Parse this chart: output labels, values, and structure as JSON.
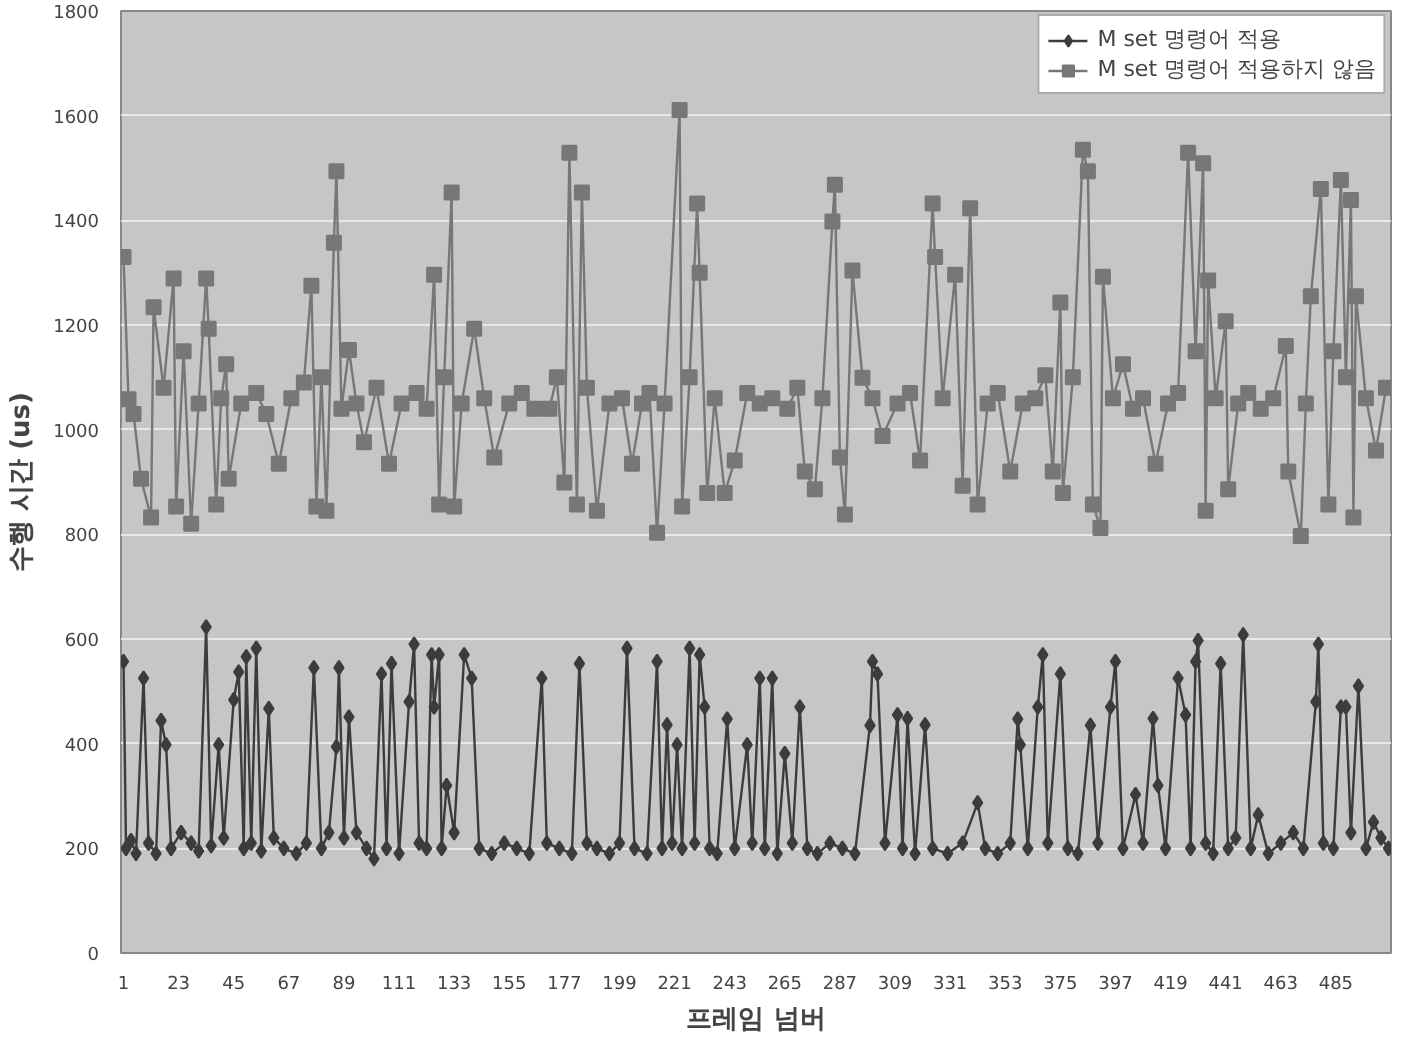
{
  "chart_data": {
    "type": "line",
    "xlabel": "프레임 넘버",
    "ylabel": "수행 시간 (us)",
    "xlim": [
      0,
      507
    ],
    "ylim": [
      0,
      1800
    ],
    "xticks": [
      1,
      23,
      45,
      67,
      89,
      111,
      133,
      155,
      177,
      199,
      221,
      243,
      265,
      287,
      309,
      331,
      353,
      375,
      397,
      419,
      441,
      463,
      485
    ],
    "yticks": [
      0,
      200,
      400,
      600,
      800,
      1000,
      1200,
      1400,
      1600,
      1800
    ],
    "grid": "y",
    "legend": "top right",
    "line_style": "solid",
    "series": [
      {
        "name": "M set 명령어 적용",
        "color": "#3c3c3c",
        "marker": "diamond",
        "x": [
          1,
          2,
          4,
          6,
          9,
          11,
          14,
          16,
          18,
          20,
          24,
          28,
          31,
          34,
          36,
          39,
          41,
          45,
          47,
          49,
          50,
          52,
          54,
          56,
          59,
          61,
          65,
          70,
          74,
          77,
          80,
          83,
          86,
          87,
          89,
          91,
          94,
          98,
          101,
          104,
          106,
          108,
          111,
          115,
          117,
          119,
          122,
          124,
          125,
          127,
          128,
          130,
          133,
          137,
          140,
          143,
          148,
          153,
          158,
          163,
          168,
          170,
          175,
          180,
          183,
          186,
          190,
          195,
          199,
          202,
          205,
          210,
          214,
          216,
          218,
          220,
          222,
          224,
          227,
          229,
          231,
          233,
          235,
          238,
          242,
          245,
          250,
          252,
          255,
          257,
          260,
          262,
          265,
          268,
          271,
          274,
          278,
          283,
          288,
          293,
          299,
          300,
          302,
          305,
          310,
          312,
          314,
          317,
          321,
          324,
          330,
          336,
          342,
          345,
          350,
          355,
          358,
          359,
          362,
          366,
          368,
          370,
          375,
          378,
          382,
          387,
          390,
          395,
          397,
          400,
          405,
          408,
          412,
          414,
          417,
          422,
          425,
          427,
          429,
          430,
          433,
          436,
          439,
          442,
          445,
          448,
          451,
          454,
          458,
          463,
          468,
          472,
          477,
          478,
          480,
          484,
          487,
          489,
          491,
          494,
          497,
          500,
          503,
          506
        ],
        "values": [
          557,
          200,
          215,
          190,
          525,
          210,
          190,
          444,
          398,
          200,
          230,
          210,
          195,
          623,
          205,
          398,
          220,
          484,
          537,
          200,
          566,
          210,
          582,
          195,
          467,
          220,
          200,
          190,
          210,
          545,
          200,
          230,
          394,
          545,
          220,
          451,
          230,
          200,
          180,
          533,
          200,
          553,
          190,
          480,
          590,
          210,
          200,
          570,
          470,
          570,
          200,
          320,
          230,
          570,
          525,
          200,
          190,
          210,
          200,
          190,
          525,
          210,
          200,
          190,
          553,
          210,
          200,
          190,
          210,
          582,
          200,
          190,
          557,
          200,
          436,
          210,
          398,
          200,
          582,
          210,
          570,
          470,
          200,
          190,
          447,
          200,
          398,
          210,
          525,
          200,
          525,
          190,
          381,
          210,
          470,
          200,
          190,
          210,
          200,
          190,
          435,
          557,
          533,
          210,
          455,
          200,
          448,
          190,
          436,
          200,
          190,
          210,
          287,
          200,
          190,
          210,
          447,
          398,
          200,
          470,
          570,
          210,
          533,
          200,
          190,
          435,
          210,
          470,
          557,
          200,
          303,
          210,
          448,
          320,
          200,
          525,
          455,
          200,
          557,
          597,
          210,
          190,
          553,
          200,
          220,
          608,
          200,
          264,
          190,
          210,
          230,
          200,
          480,
          590,
          210,
          200,
          470,
          470,
          230,
          510,
          200,
          250,
          220,
          200
        ]
      },
      {
        "name": "M set 명령어 적용하지 않음",
        "color": "#777777",
        "marker": "square",
        "x": [
          1,
          3,
          5,
          8,
          12,
          13,
          17,
          21,
          22,
          25,
          28,
          31,
          34,
          35,
          38,
          40,
          42,
          43,
          48,
          54,
          58,
          63,
          68,
          73,
          76,
          78,
          80,
          82,
          85,
          86,
          88,
          91,
          94,
          97,
          102,
          107,
          112,
          118,
          122,
          125,
          127,
          129,
          132,
          133,
          136,
          141,
          145,
          149,
          155,
          160,
          165,
          171,
          174,
          177,
          179,
          182,
          184,
          186,
          190,
          195,
          200,
          204,
          208,
          211,
          214,
          217,
          223,
          224,
          227,
          230,
          231,
          234,
          237,
          241,
          245,
          250,
          255,
          260,
          266,
          270,
          273,
          277,
          280,
          284,
          285,
          287,
          289,
          292,
          296,
          300,
          304,
          310,
          315,
          319,
          324,
          325,
          328,
          333,
          336,
          339,
          342,
          346,
          350,
          355,
          360,
          365,
          369,
          372,
          375,
          376,
          380,
          384,
          386,
          388,
          391,
          392,
          396,
          400,
          404,
          408,
          413,
          418,
          422,
          426,
          429,
          432,
          433,
          434,
          437,
          441,
          442,
          446,
          450,
          455,
          460,
          465,
          466,
          471,
          473,
          475,
          479,
          482,
          484,
          487,
          489,
          491,
          492,
          493,
          497,
          501,
          505
        ],
        "values": [
          1330,
          1058,
          1030,
          906,
          832,
          1234,
          1080,
          1289,
          853,
          1150,
          820,
          1050,
          1289,
          1193,
          857,
          1060,
          1125,
          906,
          1050,
          1070,
          1030,
          935,
          1060,
          1090,
          1275,
          853,
          1100,
          845,
          1357,
          1494,
          1040,
          1152,
          1050,
          976,
          1080,
          935,
          1050,
          1070,
          1040,
          1296,
          857,
          1100,
          1453,
          853,
          1050,
          1193,
          1060,
          947,
          1050,
          1070,
          1040,
          1040,
          1100,
          899,
          1529,
          857,
          1453,
          1080,
          845,
          1050,
          1060,
          935,
          1050,
          1070,
          803,
          1050,
          1611,
          853,
          1100,
          1432,
          1300,
          879,
          1060,
          879,
          941,
          1070,
          1050,
          1060,
          1040,
          1080,
          920,
          886,
          1060,
          1398,
          1468,
          947,
          838,
          1304,
          1099,
          1060,
          988,
          1050,
          1070,
          941,
          1432,
          1330,
          1060,
          1296,
          893,
          1423,
          857,
          1050,
          1070,
          920,
          1050,
          1060,
          1104,
          920,
          1243,
          879,
          1100,
          1535,
          1494,
          857,
          812,
          1292,
          1060,
          1125,
          1040,
          1060,
          935,
          1050,
          1070,
          1529,
          1150,
          1509,
          845,
          1285,
          1060,
          1207,
          886,
          1050,
          1070,
          1040,
          1060,
          1160,
          920,
          797,
          1050,
          1255,
          1460,
          857,
          1150,
          1477,
          1100,
          1439,
          832,
          1255,
          1060,
          960,
          1080
        ]
      }
    ]
  }
}
